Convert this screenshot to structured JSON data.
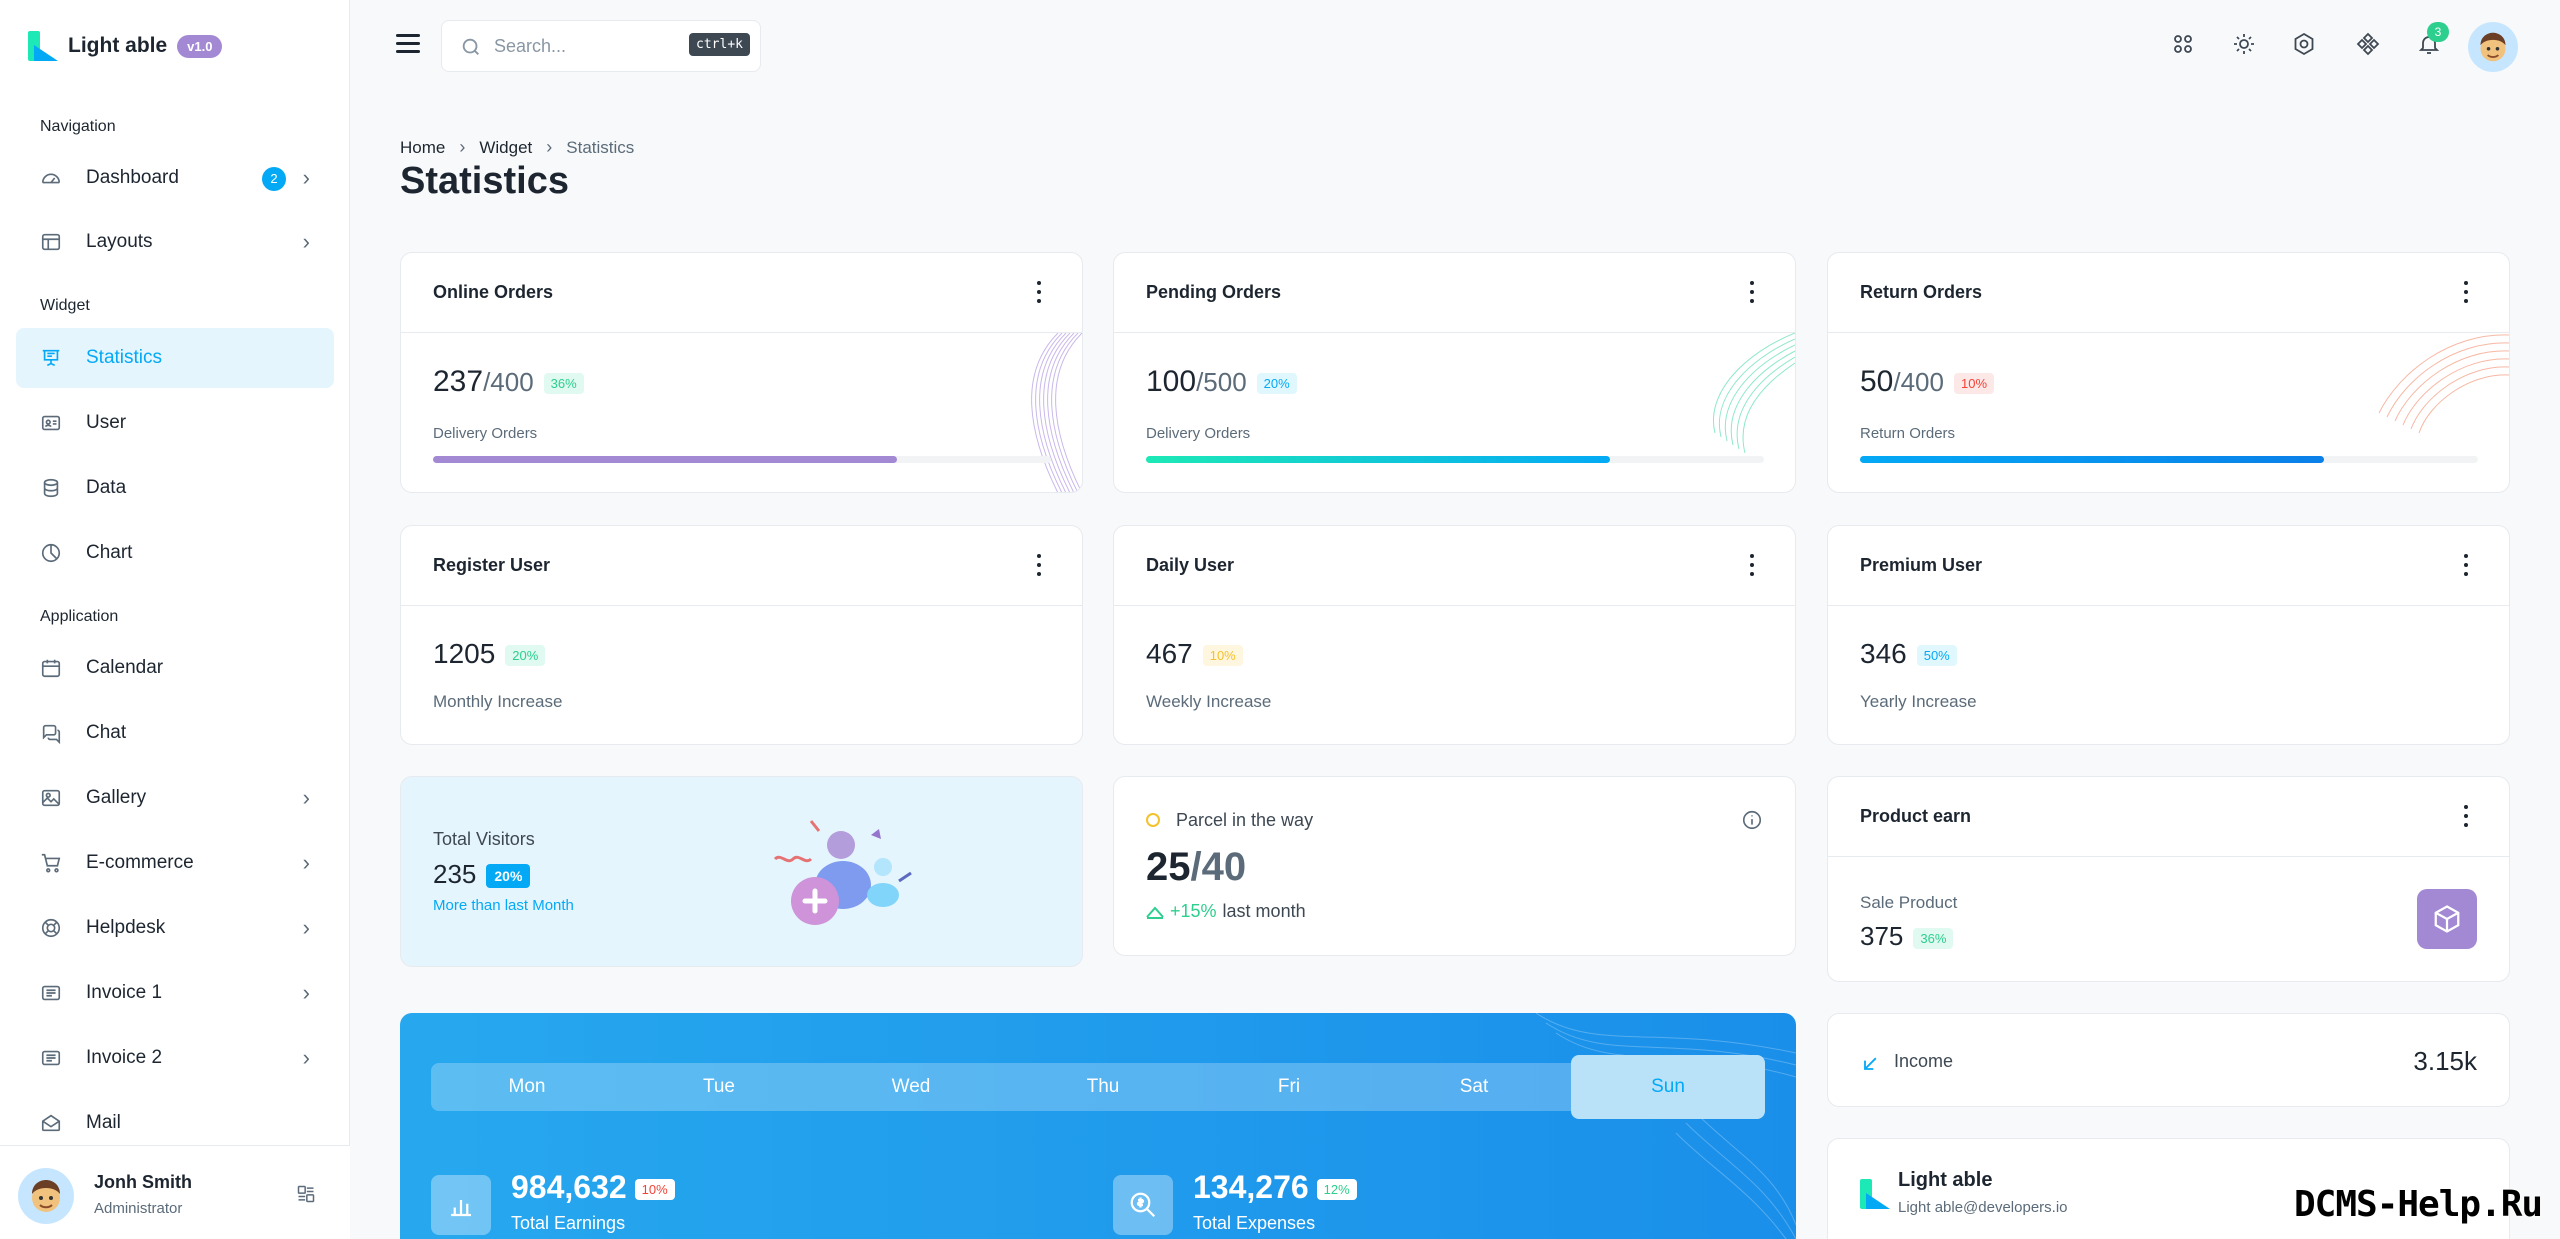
{
  "brand": {
    "name": "Light able",
    "version": "v1.0"
  },
  "sidebar": {
    "captions": {
      "navigation": "Navigation",
      "widget": "Widget",
      "application": "Application"
    },
    "items": [
      {
        "label": "Dashboard",
        "badge": "2"
      },
      {
        "label": "Layouts"
      },
      {
        "label": "Statistics"
      },
      {
        "label": "User"
      },
      {
        "label": "Data"
      },
      {
        "label": "Chart"
      },
      {
        "label": "Calendar"
      },
      {
        "label": "Chat"
      },
      {
        "label": "Gallery"
      },
      {
        "label": "E-commerce"
      },
      {
        "label": "Helpdesk"
      },
      {
        "label": "Invoice 1"
      },
      {
        "label": "Invoice 2"
      },
      {
        "label": "Mail"
      }
    ],
    "user": {
      "name": "Jonh Smith",
      "role": "Administrator"
    }
  },
  "header": {
    "search_placeholder": "Search...",
    "search_shortcut": "ctrl+k",
    "notification_count": "3"
  },
  "breadcrumb": {
    "home": "Home",
    "widget": "Widget",
    "current": "Statistics"
  },
  "page_title": "Statistics",
  "orders": [
    {
      "title": "Online Orders",
      "value": "237",
      "total": "/400",
      "pct": "36%",
      "sub": "Delivery Orders",
      "progress": 0.75
    },
    {
      "title": "Pending Orders",
      "value": "100",
      "total": "/500",
      "pct": "20%",
      "sub": "Delivery Orders",
      "progress": 0.75
    },
    {
      "title": "Return Orders",
      "value": "50",
      "total": "/400",
      "pct": "10%",
      "sub": "Return Orders",
      "progress": 0.75
    }
  ],
  "users": [
    {
      "title": "Register User",
      "value": "1205",
      "pct": "20%",
      "sub": "Monthly Increase"
    },
    {
      "title": "Daily User",
      "value": "467",
      "pct": "10%",
      "sub": "Weekly Increase"
    },
    {
      "title": "Premium User",
      "value": "346",
      "pct": "50%",
      "sub": "Yearly Increase"
    }
  ],
  "visitors": {
    "label": "Total Visitors",
    "value": "235",
    "pct": "20%",
    "more": "More than last Month"
  },
  "parcel": {
    "title": "Parcel in the way",
    "value": "25",
    "total": "/40",
    "trend": "+15%",
    "trend_label": "last month"
  },
  "product_earn": {
    "title": "Product earn",
    "label": "Sale Product",
    "value": "375",
    "pct": "36%"
  },
  "income": {
    "label": "Income",
    "value": "3.15k"
  },
  "light_able": {
    "name": "Light able",
    "email": "Light able@developers.io"
  },
  "week": {
    "days": [
      "Mon",
      "Tue",
      "Wed",
      "Thu",
      "Fri",
      "Sat",
      "Sun"
    ],
    "active": "Sun",
    "earnings": {
      "value": "984,632",
      "pct": "10%",
      "label": "Total Earnings"
    },
    "expenses": {
      "value": "134,276",
      "pct": "12%",
      "label": "Total Expenses"
    }
  },
  "watermark": "DCMS-Help.Ru",
  "colors": {
    "primary": "#04a9f5",
    "success": "#2ccf8e",
    "danger": "#f44236",
    "warning": "#f4c22b",
    "purple": "#a389d4"
  }
}
